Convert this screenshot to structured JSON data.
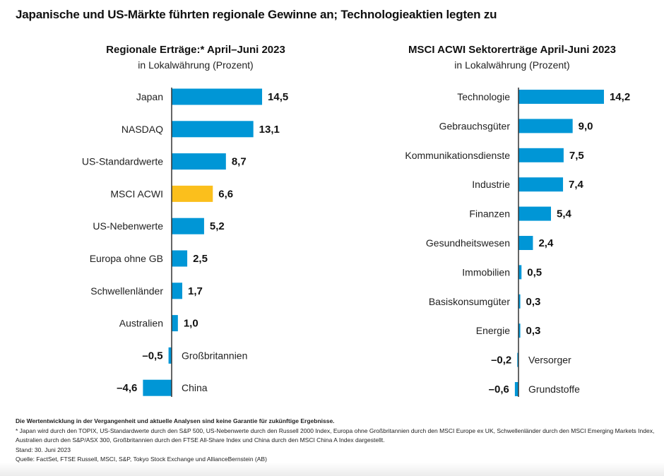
{
  "title": "Japanische und US-Märkte führten regionale Gewinne an; Technologieaktien legten zu",
  "colors": {
    "bar": "#0096d6",
    "highlight": "#fbbf1c",
    "axis": "#333333"
  },
  "chart_data": [
    {
      "type": "bar",
      "orientation": "horizontal",
      "title": "Regionale Erträge:* April–Juni 2023",
      "subtitle": "in Lokalwährung (Prozent)",
      "categories": [
        "Japan",
        "NASDAQ",
        "US-Standardwerte",
        "MSCI ACWI",
        "US-Nebenwerte",
        "Europa ohne GB",
        "Schwellenländer",
        "Australien",
        "Großbritannien",
        "China"
      ],
      "values": [
        14.5,
        13.1,
        8.7,
        6.6,
        5.2,
        2.5,
        1.7,
        1.0,
        -0.5,
        -4.6
      ],
      "labels": [
        "14,5",
        "13,1",
        "8,7",
        "6,6",
        "5,2",
        "2,5",
        "1,7",
        "1,0",
        "–0,5",
        "–4,6"
      ],
      "highlight": "MSCI ACWI"
    },
    {
      "type": "bar",
      "orientation": "horizontal",
      "title": "MSCI ACWI Sektorerträge April-Juni 2023",
      "subtitle": "in Lokalwährung (Prozent)",
      "categories": [
        "Technologie",
        "Gebrauchsgüter",
        "Kommunikationsdienste",
        "Industrie",
        "Finanzen",
        "Gesundheitswesen",
        "Immobilien",
        "Basiskonsumgüter",
        "Energie",
        "Versorger",
        "Grundstoffe"
      ],
      "values": [
        14.2,
        9.0,
        7.5,
        7.4,
        5.4,
        2.4,
        0.5,
        0.3,
        0.3,
        -0.2,
        -0.6
      ],
      "labels": [
        "14,2",
        "9,0",
        "7,5",
        "7,4",
        "5,4",
        "2,4",
        "0,5",
        "0,3",
        "0,3",
        "–0,2",
        "–0,6"
      ]
    }
  ],
  "notes": {
    "disclaimer": "Die Wertentwicklung in der Vergangenheit und aktuelle Analysen sind keine Garantie für zukünftige Ergebnisse.",
    "footnote": "* Japan wird durch den TOPIX, US-Standardwerte durch den S&P 500, US-Nebenwerte durch den Russell 2000 Index, Europa ohne Großbritannien durch den MSCI Europe ex UK, Schwellenländer durch den MSCI Emerging Markets Index, Australien durch den S&P/ASX 300, Großbritannien durch den FTSE All-Share Index und China durch den MSCI China A Index dargestellt.",
    "date": "Stand: 30. Juni 2023",
    "source": "Quelle: FactSet, FTSE Russell, MSCI, S&P, Tokyo Stock Exchange und AllianceBernstein (AB)"
  }
}
